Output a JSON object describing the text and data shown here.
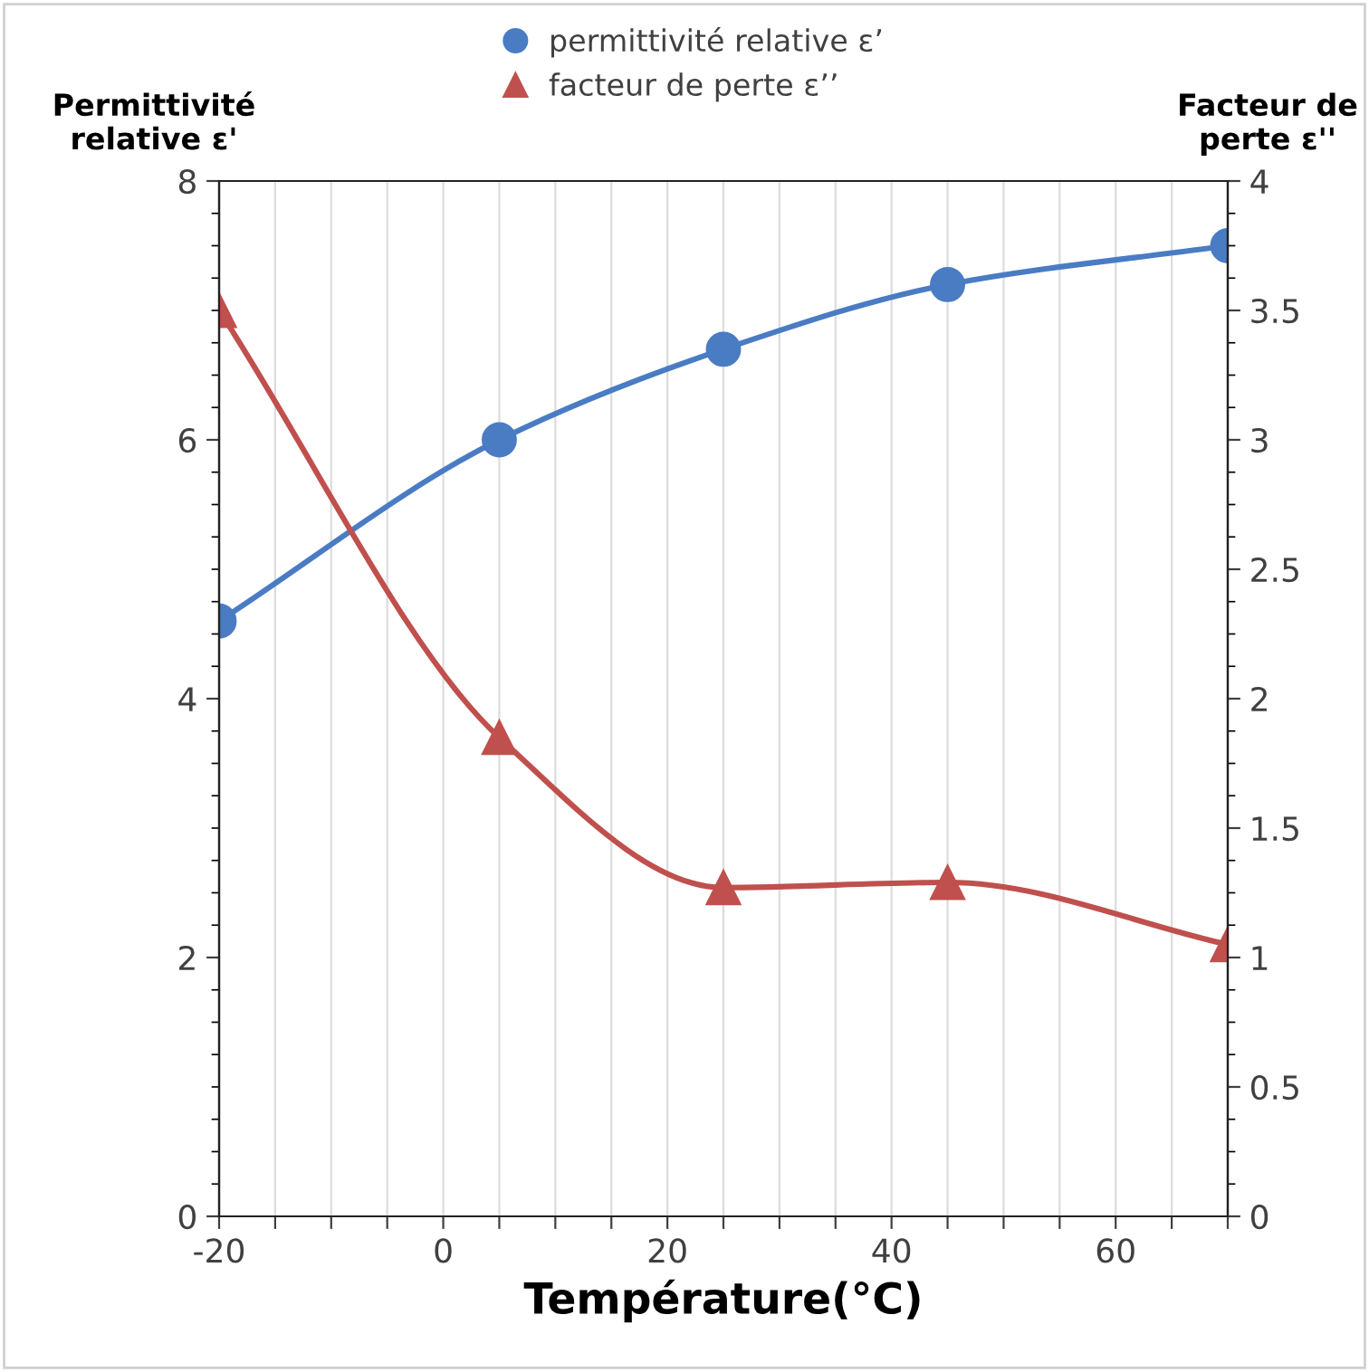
{
  "chart_data": {
    "type": "line",
    "xlabel": "Température(°C)",
    "ylabel": "Permittivité\nrelative ε'",
    "y2label": "Facteur de\nperte ε''",
    "x": [
      -20,
      5,
      25,
      45,
      70
    ],
    "series": [
      {
        "name": "permittivité relative ε’",
        "color": "#4a7cc4",
        "values": [
          4.6,
          6.0,
          6.7,
          7.2,
          7.5
        ],
        "marker": "circle"
      },
      {
        "name": "facteur de perte ε’’",
        "color": "#c0504d",
        "values": [
          3.5,
          1.85,
          1.27,
          1.29,
          1.05
        ],
        "marker": "triangle",
        "axis": "y2"
      }
    ],
    "xlim": [
      -20,
      70
    ],
    "xticks": [
      -20,
      {
        "value": -15,
        "label": null
      },
      {
        "value": -10,
        "label": null
      },
      {
        "value": -5,
        "label": null
      },
      0,
      {
        "value": 5,
        "label": null
      },
      {
        "value": 10,
        "label": null
      },
      {
        "value": 15,
        "label": null
      },
      20,
      {
        "value": 25,
        "label": null
      },
      {
        "value": 30,
        "label": null
      },
      {
        "value": 35,
        "label": null
      },
      40,
      {
        "value": 45,
        "label": null
      },
      {
        "value": 50,
        "label": null
      },
      {
        "value": 55,
        "label": null
      },
      60,
      {
        "value": 65,
        "label": null
      },
      {
        "value": 70,
        "label": null
      }
    ],
    "ylim": [
      0,
      8
    ],
    "yticks": [
      0,
      2,
      4,
      6,
      8
    ],
    "y2lim": [
      0,
      4
    ],
    "y2ticks": [
      0,
      0.5,
      1,
      1.5,
      2,
      2.5,
      3,
      3.5,
      4
    ],
    "grid": "x",
    "legend": "top"
  }
}
